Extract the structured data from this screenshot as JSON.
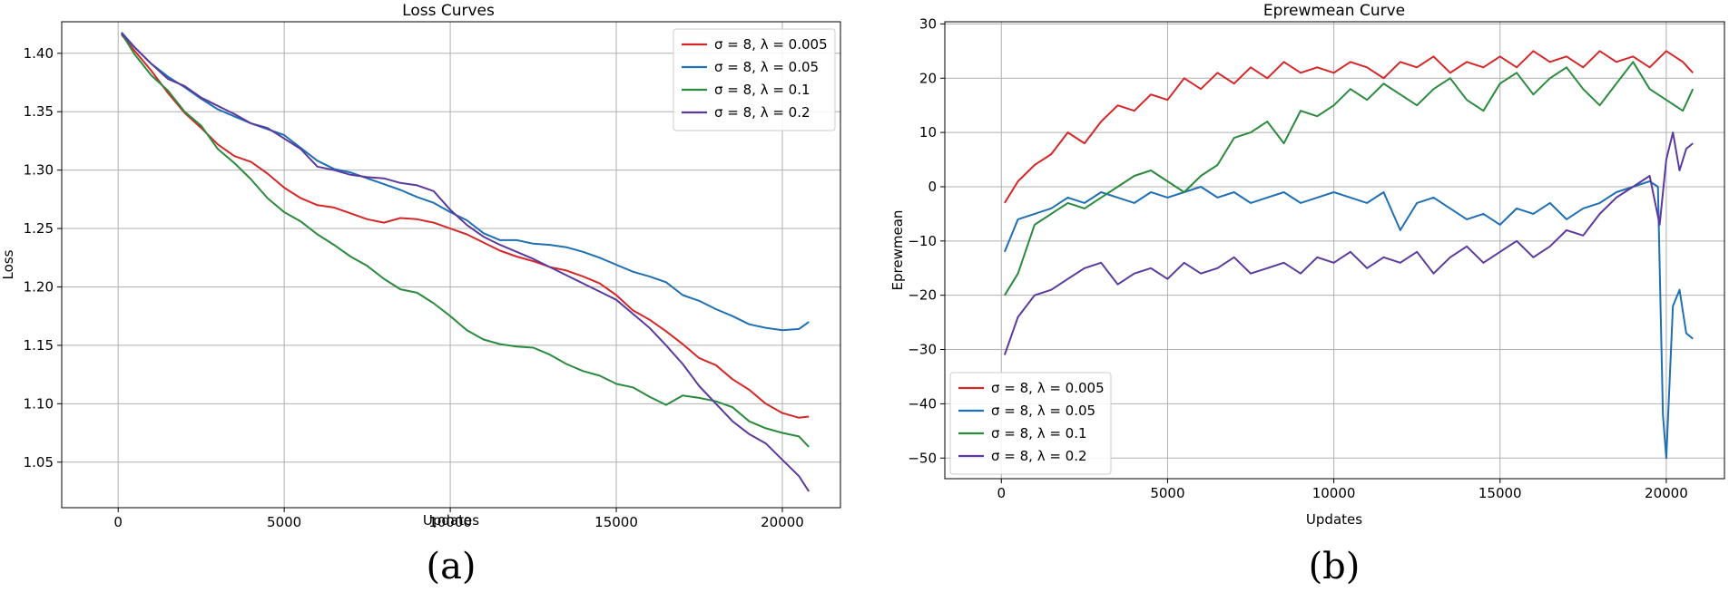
{
  "chart_data": [
    {
      "type": "line",
      "title": "Loss Curves",
      "xlabel": "Updates",
      "ylabel": "Loss",
      "caption": "(a)",
      "xlim": [
        -1700,
        21750
      ],
      "ylim": [
        1.011,
        1.427
      ],
      "xticks": [
        0,
        5000,
        10000,
        15000,
        20000
      ],
      "yticks": [
        1.05,
        1.1,
        1.15,
        1.2,
        1.25,
        1.3,
        1.35,
        1.4
      ],
      "ytick_labels": [
        "1.05",
        "1.10",
        "1.15",
        "1.20",
        "1.25",
        "1.30",
        "1.35",
        "1.40"
      ],
      "grid": true,
      "legend_position": "top-right",
      "series": [
        {
          "name": "σ = 8, λ = 0.005",
          "color": "#d62728",
          "x": [
            100,
            500,
            1000,
            1500,
            2000,
            2500,
            3000,
            3500,
            4000,
            4500,
            5000,
            5500,
            6000,
            6500,
            7000,
            7500,
            8000,
            8500,
            9000,
            9500,
            10000,
            10500,
            11000,
            11500,
            12000,
            12500,
            13000,
            13500,
            14000,
            14500,
            15000,
            15500,
            16000,
            16500,
            17000,
            17500,
            18000,
            18500,
            19000,
            19500,
            20000,
            20500,
            20800
          ],
          "y": [
            1.416,
            1.402,
            1.385,
            1.366,
            1.349,
            1.336,
            1.322,
            1.312,
            1.307,
            1.297,
            1.285,
            1.276,
            1.27,
            1.268,
            1.263,
            1.258,
            1.255,
            1.259,
            1.258,
            1.255,
            1.25,
            1.245,
            1.238,
            1.231,
            1.226,
            1.222,
            1.217,
            1.214,
            1.209,
            1.203,
            1.193,
            1.18,
            1.172,
            1.162,
            1.151,
            1.139,
            1.133,
            1.121,
            1.112,
            1.1,
            1.092,
            1.088,
            1.089
          ]
        },
        {
          "name": "σ = 8, λ = 0.05",
          "color": "#1f6fb4",
          "x": [
            100,
            500,
            1000,
            1500,
            2000,
            2500,
            3000,
            3500,
            4000,
            4500,
            5000,
            5500,
            6000,
            6500,
            7000,
            7500,
            8000,
            8500,
            9000,
            9500,
            10000,
            10500,
            11000,
            11500,
            12000,
            12500,
            13000,
            13500,
            14000,
            14500,
            15000,
            15500,
            16000,
            16500,
            17000,
            17500,
            18000,
            18500,
            19000,
            19500,
            20000,
            20500,
            20800
          ],
          "y": [
            1.418,
            1.405,
            1.391,
            1.38,
            1.371,
            1.361,
            1.352,
            1.346,
            1.34,
            1.335,
            1.33,
            1.319,
            1.308,
            1.301,
            1.298,
            1.293,
            1.288,
            1.283,
            1.277,
            1.272,
            1.264,
            1.257,
            1.246,
            1.24,
            1.24,
            1.237,
            1.236,
            1.234,
            1.23,
            1.225,
            1.219,
            1.213,
            1.209,
            1.204,
            1.193,
            1.188,
            1.181,
            1.175,
            1.168,
            1.165,
            1.163,
            1.164,
            1.17
          ]
        },
        {
          "name": "σ = 8, λ = 0.1",
          "color": "#2a8a3e",
          "x": [
            100,
            500,
            1000,
            1500,
            2000,
            2500,
            3000,
            3500,
            4000,
            4500,
            5000,
            5500,
            6000,
            6500,
            7000,
            7500,
            8000,
            8500,
            9000,
            9500,
            10000,
            10500,
            11000,
            11500,
            12000,
            12500,
            13000,
            13500,
            14000,
            14500,
            15000,
            15500,
            16000,
            16500,
            17000,
            17500,
            18000,
            18500,
            19000,
            19500,
            20000,
            20500,
            20800
          ],
          "y": [
            1.417,
            1.399,
            1.381,
            1.368,
            1.35,
            1.338,
            1.318,
            1.306,
            1.292,
            1.276,
            1.264,
            1.256,
            1.245,
            1.236,
            1.226,
            1.218,
            1.207,
            1.198,
            1.195,
            1.186,
            1.175,
            1.163,
            1.155,
            1.151,
            1.149,
            1.148,
            1.142,
            1.134,
            1.128,
            1.124,
            1.117,
            1.114,
            1.106,
            1.099,
            1.107,
            1.105,
            1.102,
            1.097,
            1.085,
            1.079,
            1.075,
            1.072,
            1.063
          ]
        },
        {
          "name": "σ = 8, λ = 0.2",
          "color": "#5b3a9e",
          "x": [
            100,
            500,
            1000,
            1500,
            2000,
            2500,
            3000,
            3500,
            4000,
            4500,
            5000,
            5500,
            6000,
            6500,
            7000,
            7500,
            8000,
            8500,
            9000,
            9500,
            10000,
            10500,
            11000,
            11500,
            12000,
            12500,
            13000,
            13500,
            14000,
            14500,
            15000,
            15500,
            16000,
            16500,
            17000,
            17500,
            18000,
            18500,
            19000,
            19500,
            20000,
            20500,
            20800
          ],
          "y": [
            1.417,
            1.405,
            1.391,
            1.378,
            1.372,
            1.362,
            1.355,
            1.348,
            1.34,
            1.336,
            1.327,
            1.318,
            1.303,
            1.3,
            1.296,
            1.294,
            1.293,
            1.289,
            1.287,
            1.282,
            1.266,
            1.253,
            1.243,
            1.236,
            1.23,
            1.224,
            1.217,
            1.21,
            1.203,
            1.196,
            1.189,
            1.177,
            1.165,
            1.15,
            1.134,
            1.115,
            1.1,
            1.085,
            1.074,
            1.066,
            1.052,
            1.038,
            1.025
          ]
        }
      ]
    },
    {
      "type": "line",
      "title": "Eprewmean Curve",
      "xlabel": "Updates",
      "ylabel": "Eprewmean",
      "caption": "(b)",
      "xlim": [
        -1700,
        21750
      ],
      "ylim": [
        -53.8,
        30.4
      ],
      "xticks": [
        0,
        5000,
        10000,
        15000,
        20000
      ],
      "yticks": [
        -50,
        -40,
        -30,
        -20,
        -10,
        0,
        10,
        20,
        30
      ],
      "ytick_labels": [
        "−50",
        "−40",
        "−30",
        "−20",
        "−10",
        "0",
        "10",
        "20",
        "30"
      ],
      "grid": true,
      "legend_position": "bottom-left",
      "series": [
        {
          "name": "σ = 8, λ = 0.005",
          "color": "#d62728",
          "x": [
            100,
            500,
            1000,
            1500,
            2000,
            2500,
            3000,
            3500,
            4000,
            4500,
            5000,
            5500,
            6000,
            6500,
            7000,
            7500,
            8000,
            8500,
            9000,
            9500,
            10000,
            10500,
            11000,
            11500,
            12000,
            12500,
            13000,
            13500,
            14000,
            14500,
            15000,
            15500,
            16000,
            16500,
            17000,
            17500,
            18000,
            18500,
            19000,
            19500,
            20000,
            20500,
            20800
          ],
          "y": [
            -3,
            1,
            4,
            6,
            10,
            8,
            12,
            15,
            14,
            17,
            16,
            20,
            18,
            21,
            19,
            22,
            20,
            23,
            21,
            22,
            21,
            23,
            22,
            20,
            23,
            22,
            24,
            21,
            23,
            22,
            24,
            22,
            25,
            23,
            24,
            22,
            25,
            23,
            24,
            22,
            25,
            23,
            21
          ]
        },
        {
          "name": "σ = 8, λ = 0.05",
          "color": "#1f6fb4",
          "x": [
            100,
            500,
            1000,
            1500,
            2000,
            2500,
            3000,
            3500,
            4000,
            4500,
            5000,
            5500,
            6000,
            6500,
            7000,
            7500,
            8000,
            8500,
            9000,
            9500,
            10000,
            10500,
            11000,
            11500,
            12000,
            12500,
            13000,
            13500,
            14000,
            14500,
            15000,
            15500,
            16000,
            16500,
            17000,
            17500,
            18000,
            18500,
            19000,
            19500,
            19750,
            19900,
            20000,
            20200,
            20400,
            20600,
            20800
          ],
          "y": [
            -12,
            -6,
            -5,
            -4,
            -2,
            -3,
            -1,
            -2,
            -3,
            -1,
            -2,
            -1,
            0,
            -2,
            -1,
            -3,
            -2,
            -1,
            -3,
            -2,
            -1,
            -2,
            -3,
            -1,
            -8,
            -3,
            -2,
            -4,
            -6,
            -5,
            -7,
            -4,
            -5,
            -3,
            -6,
            -4,
            -3,
            -1,
            0,
            1,
            0,
            -42,
            -50,
            -22,
            -19,
            -27,
            -28
          ]
        },
        {
          "name": "σ = 8, λ = 0.1",
          "color": "#2a8a3e",
          "x": [
            100,
            500,
            1000,
            1500,
            2000,
            2500,
            3000,
            3500,
            4000,
            4500,
            5000,
            5500,
            6000,
            6500,
            7000,
            7500,
            8000,
            8500,
            9000,
            9500,
            10000,
            10500,
            11000,
            11500,
            12000,
            12500,
            13000,
            13500,
            14000,
            14500,
            15000,
            15500,
            16000,
            16500,
            17000,
            17500,
            18000,
            18500,
            19000,
            19500,
            20000,
            20500,
            20800
          ],
          "y": [
            -20,
            -16,
            -7,
            -5,
            -3,
            -4,
            -2,
            0,
            2,
            3,
            1,
            -1,
            2,
            4,
            9,
            10,
            12,
            8,
            14,
            13,
            15,
            18,
            16,
            19,
            17,
            15,
            18,
            20,
            16,
            14,
            19,
            21,
            17,
            20,
            22,
            18,
            15,
            19,
            23,
            18,
            16,
            14,
            18
          ]
        },
        {
          "name": "σ = 8, λ = 0.2",
          "color": "#5b3a9e",
          "x": [
            100,
            500,
            1000,
            1500,
            2000,
            2500,
            3000,
            3500,
            4000,
            4500,
            5000,
            5500,
            6000,
            6500,
            7000,
            7500,
            8000,
            8500,
            9000,
            9500,
            10000,
            10500,
            11000,
            11500,
            12000,
            12500,
            13000,
            13500,
            14000,
            14500,
            15000,
            15500,
            16000,
            16500,
            17000,
            17500,
            18000,
            18500,
            19000,
            19500,
            19800,
            20000,
            20200,
            20400,
            20600,
            20800
          ],
          "y": [
            -31,
            -24,
            -20,
            -19,
            -17,
            -15,
            -14,
            -18,
            -16,
            -15,
            -17,
            -14,
            -16,
            -15,
            -13,
            -16,
            -15,
            -14,
            -16,
            -13,
            -14,
            -12,
            -15,
            -13,
            -14,
            -12,
            -16,
            -13,
            -11,
            -14,
            -12,
            -10,
            -13,
            -11,
            -8,
            -9,
            -5,
            -2,
            0,
            2,
            -7,
            5,
            10,
            3,
            7,
            8
          ]
        }
      ]
    }
  ]
}
